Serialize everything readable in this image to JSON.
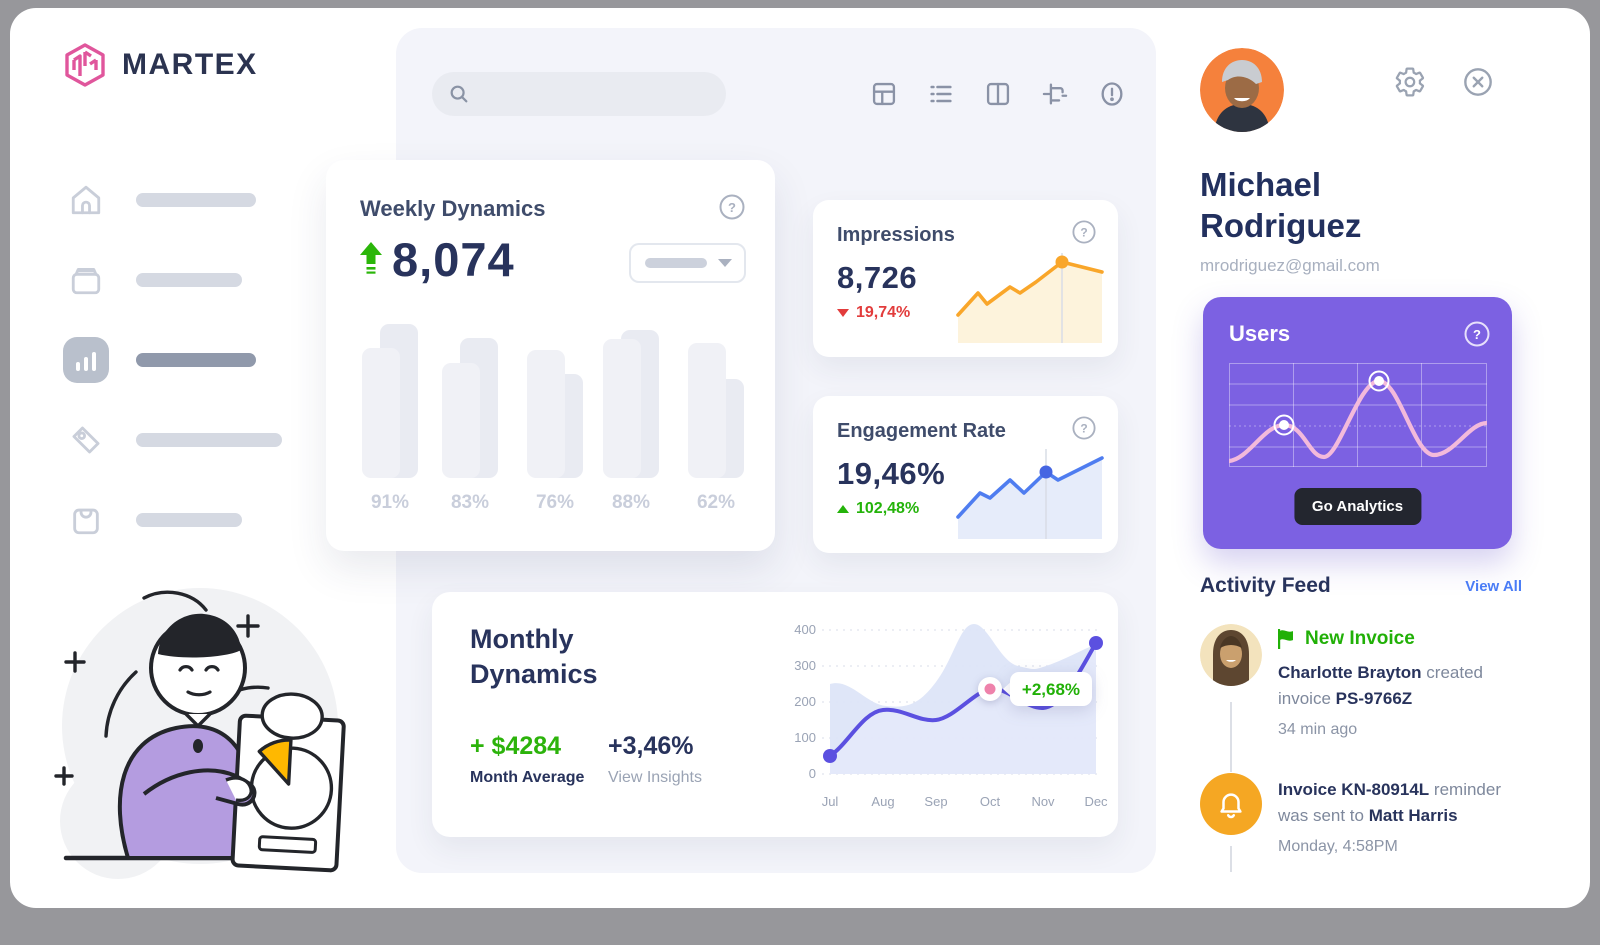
{
  "brand": {
    "name": "MARTEX"
  },
  "icons": {
    "question": "?"
  },
  "sidebar": {
    "items": [
      {
        "icon": "home-icon",
        "active": false
      },
      {
        "icon": "archive-icon",
        "active": false
      },
      {
        "icon": "bar-chart-icon",
        "active": true
      },
      {
        "icon": "tag-icon",
        "active": false
      },
      {
        "icon": "shopping-bag-icon",
        "active": false
      }
    ]
  },
  "weekly": {
    "title": "Weekly Dynamics",
    "value": "8,074",
    "bars": {
      "labels": [
        "91%",
        "83%",
        "76%",
        "88%",
        "62%"
      ],
      "front_heights": [
        130,
        115,
        128,
        139,
        135
      ],
      "back_heights": [
        154,
        140,
        104,
        148,
        99
      ]
    }
  },
  "impressions": {
    "title": "Impressions",
    "value": "8,726",
    "delta": "19,74%"
  },
  "engagement": {
    "title": "Engagement Rate",
    "value": "19,46%",
    "delta": "102,48%"
  },
  "monthly": {
    "title_line1": "Monthly",
    "title_line2": "Dynamics",
    "amount": "+ $4284",
    "amount_label": "Month Average",
    "percent": "+3,46%",
    "percent_label": "View Insights",
    "tooltip": "+2,68%",
    "chart": {
      "months": [
        "Jul",
        "Aug",
        "Sep",
        "Oct",
        "Nov",
        "Dec"
      ],
      "yticks": [
        "400",
        "300",
        "200",
        "100",
        "0"
      ]
    }
  },
  "profile": {
    "name_line1": "Michael",
    "name_line2": "Rodriguez",
    "email": "mrodriguez@gmail.com"
  },
  "users_card": {
    "title": "Users",
    "button": "Go Analytics"
  },
  "activity": {
    "title": "Activity Feed",
    "link": "View All",
    "items": [
      {
        "badge": "New Invoice",
        "line1_bold": "Charlotte Brayton",
        "line1_rest": " created",
        "line2_prefix": "invoice ",
        "line2_bold": "PS-9766Z",
        "time": "34  min ago"
      },
      {
        "badge": "",
        "line1_bold": "Invoice KN-80914L",
        "line1_rest": " reminder",
        "line2_prefix": "was sent to ",
        "line2_bold": "Matt Harris",
        "time": "Monday, 4:58PM"
      }
    ]
  },
  "chart_data": [
    {
      "id": "weekly-bars",
      "type": "bar",
      "categories": [
        "91%",
        "83%",
        "76%",
        "88%",
        "62%"
      ],
      "series": [
        {
          "name": "front",
          "values": [
            130,
            115,
            128,
            139,
            135
          ]
        },
        {
          "name": "back",
          "values": [
            154,
            140,
            104,
            148,
            99
          ]
        }
      ],
      "title": "Weekly Dynamics",
      "note": "decorative placeholder bars, heights in px"
    },
    {
      "id": "impressions-sparkline",
      "type": "area",
      "values": [
        30,
        50,
        40,
        56,
        50,
        62,
        88,
        78
      ],
      "color": "#f9a62a",
      "marker_at_index": 6
    },
    {
      "id": "engagement-sparkline",
      "type": "area",
      "values": [
        24,
        46,
        42,
        58,
        46,
        66,
        58,
        88
      ],
      "color": "#4f7df0",
      "marker_at_index": 5
    },
    {
      "id": "monthly-dynamics",
      "type": "area",
      "x": [
        "Jul",
        "Aug",
        "Sep",
        "Oct",
        "Nov",
        "Dec"
      ],
      "series": [
        {
          "name": "current",
          "values": [
            50,
            178,
            150,
            235,
            182,
            365
          ]
        },
        {
          "name": "background",
          "values": [
            250,
            185,
            205,
            420,
            290,
            365
          ]
        }
      ],
      "ylim": [
        0,
        400
      ],
      "annotation": "+2,68% at Oct"
    },
    {
      "id": "users-wave",
      "type": "line",
      "values": [
        4,
        40,
        8,
        84,
        10,
        42
      ],
      "color": "#f3badb",
      "markers_at": [
        1,
        3
      ]
    }
  ]
}
